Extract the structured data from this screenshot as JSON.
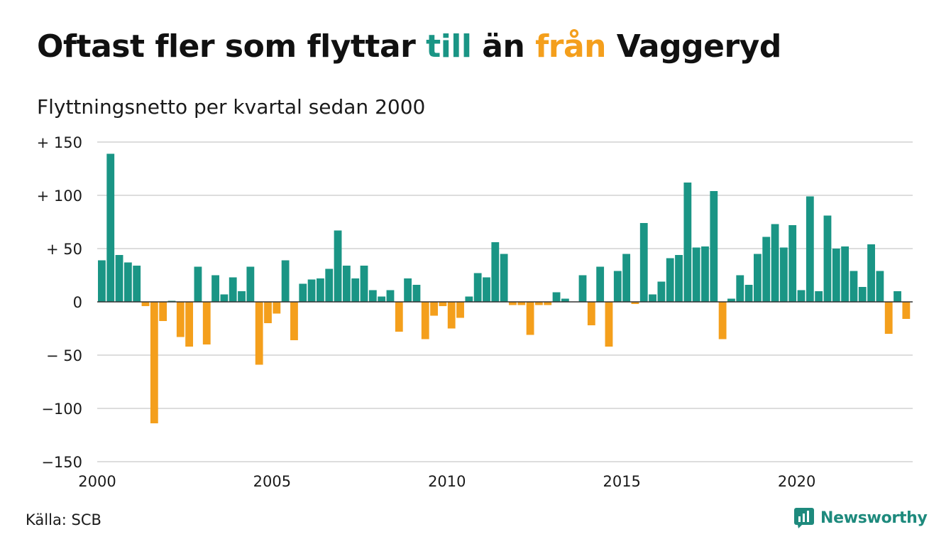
{
  "title": {
    "part1": "Oftast fler som flyttar ",
    "part2": "till",
    "part3": " än ",
    "part4": "från",
    "part5": " Vaggeryd"
  },
  "subtitle": "Flyttningsnetto per kvartal sedan 2000",
  "source": "Källa: SCB",
  "logo_text": "Newsworthy",
  "colors": {
    "positive": "#1a9585",
    "negative": "#f49f1c",
    "grid": "#dddddd",
    "axis": "#333333"
  },
  "chart_data": {
    "type": "bar",
    "x_start": "2000 Q1",
    "x_ticks": [
      "2000",
      "2005",
      "2010",
      "2015",
      "2020"
    ],
    "y_ticks": [
      "+ 150",
      "+ 100",
      "+  50",
      "0",
      "− 50",
      "−100",
      "−150"
    ],
    "ylim": [
      -150,
      150
    ],
    "grid": true,
    "values": [
      39,
      139,
      44,
      37,
      34,
      -4,
      -114,
      -18,
      1,
      -33,
      -42,
      33,
      -40,
      25,
      7,
      23,
      10,
      33,
      -59,
      -20,
      -11,
      39,
      -36,
      17,
      21,
      22,
      31,
      67,
      34,
      22,
      34,
      11,
      5,
      11,
      -28,
      22,
      16,
      -35,
      -13,
      -4,
      -25,
      -15,
      5,
      27,
      23,
      56,
      45,
      -3,
      -3,
      -31,
      -3,
      -3,
      9,
      3,
      0,
      25,
      -22,
      33,
      -42,
      29,
      45,
      -2,
      74,
      7,
      19,
      41,
      44,
      112,
      51,
      52,
      104,
      -35,
      3,
      25,
      16,
      45,
      61,
      73,
      51,
      72,
      11,
      99,
      10,
      81,
      50,
      52,
      29,
      14,
      54,
      29,
      -30,
      10,
      -16
    ]
  }
}
